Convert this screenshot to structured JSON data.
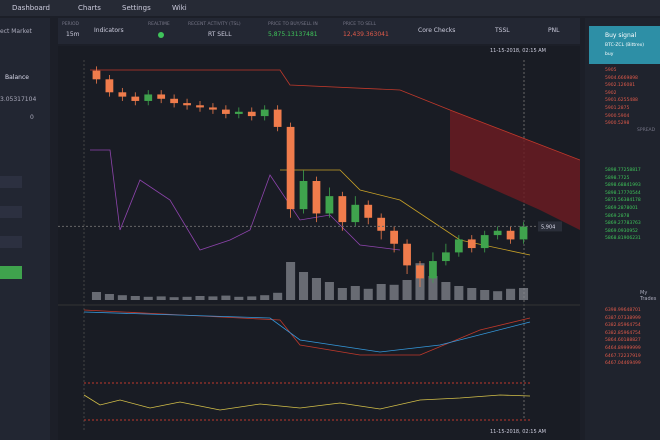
{
  "nav": [
    "Dashboard",
    "Charts",
    "Settings",
    "Wiki"
  ],
  "toolbar": {
    "period_label": "PERIOD",
    "period": "15m",
    "indicators": "Indicators",
    "realtime_label": "REALTIME",
    "activity_label": "RECENT ACTIVITY (TSL)",
    "activity": "RT SELL",
    "buy_label": "PRICE TO BUY/SELL IN",
    "buy_price": "5,875.13137481",
    "sell_label": "PRICE TO SELL",
    "sell_price": "12,439.363041",
    "core": "Core Checks",
    "tssl": "TSSL",
    "pnl": "PNL"
  },
  "left": {
    "market": "ect Market",
    "balance_label": "Balance",
    "balance": "3.05317104",
    "zero": "0"
  },
  "right": {
    "signal_title": "Buy signal",
    "signal_pair": "BTC-ZCL (Bittrex)",
    "signal_action": "buy",
    "spread": "SPREAD",
    "trades": "My Trades",
    "asks": [
      "5905",
      "5904.6669898",
      "5902.126081",
      "5902",
      "5901.6255488",
      "5901.2875",
      "5900.5904",
      "5900.5298"
    ],
    "bids": [
      "5898.77258817",
      "5898.7725",
      "5898.68841993",
      "5898.17770544",
      "5873.56384178",
      "5869.2878001",
      "5869.2878",
      "5869.27783763",
      "5869.0930952",
      "5868.81906231"
    ],
    "my_trades": [
      "6398.99648701",
      "6387.07338999",
      "6382.85964754",
      "6382.85964754",
      "5864.60188827",
      "6464.89999999",
      "6467.72237919",
      "6467.04469499"
    ]
  },
  "chart_data": {
    "type": "candlestick",
    "open": [
      5976,
      5972,
      5966,
      5964,
      5962,
      5965,
      5963,
      5961,
      5960,
      5959,
      5958,
      5956,
      5957,
      5955,
      5958,
      5950,
      5912,
      5925,
      5910,
      5918,
      5906,
      5914,
      5908,
      5902,
      5896,
      5886,
      5880,
      5888,
      5892,
      5898,
      5894,
      5900,
      5902,
      5898
    ],
    "close": [
      5972,
      5966,
      5964,
      5962,
      5965,
      5963,
      5961,
      5960,
      5959,
      5958,
      5956,
      5957,
      5955,
      5958,
      5950,
      5912,
      5925,
      5910,
      5918,
      5906,
      5914,
      5908,
      5902,
      5896,
      5886,
      5880,
      5888,
      5892,
      5898,
      5894,
      5900,
      5902,
      5898,
      5904
    ],
    "high": [
      5978,
      5974,
      5968,
      5966,
      5967,
      5967,
      5965,
      5963,
      5962,
      5961,
      5960,
      5959,
      5959,
      5960,
      5960,
      5952,
      5930,
      5927,
      5922,
      5920,
      5918,
      5916,
      5910,
      5904,
      5898,
      5888,
      5892,
      5896,
      5900,
      5900,
      5902,
      5904,
      5904,
      5906
    ],
    "low": [
      5970,
      5964,
      5962,
      5960,
      5960,
      5961,
      5959,
      5958,
      5957,
      5956,
      5954,
      5954,
      5953,
      5953,
      5948,
      5908,
      5910,
      5906,
      5908,
      5902,
      5904,
      5905,
      5898,
      5892,
      5882,
      5876,
      5878,
      5886,
      5890,
      5892,
      5892,
      5898,
      5896,
      5896
    ],
    "volume": [
      20,
      15,
      12,
      10,
      8,
      9,
      7,
      8,
      10,
      9,
      11,
      8,
      9,
      12,
      18,
      95,
      70,
      55,
      45,
      30,
      35,
      28,
      40,
      38,
      50,
      92,
      60,
      45,
      35,
      30,
      25,
      22,
      28,
      30
    ],
    "up_color": "#3fa34d",
    "down_color": "#f07c4c",
    "ylim": [
      5870,
      5980
    ],
    "vlim": [
      0,
      100
    ],
    "price_marker": {
      "value": 5904,
      "label": "5,904"
    },
    "date_top": "11-15-2018, 02:15 AM",
    "date_bottom": "11-15-2018, 02:15 AM"
  }
}
